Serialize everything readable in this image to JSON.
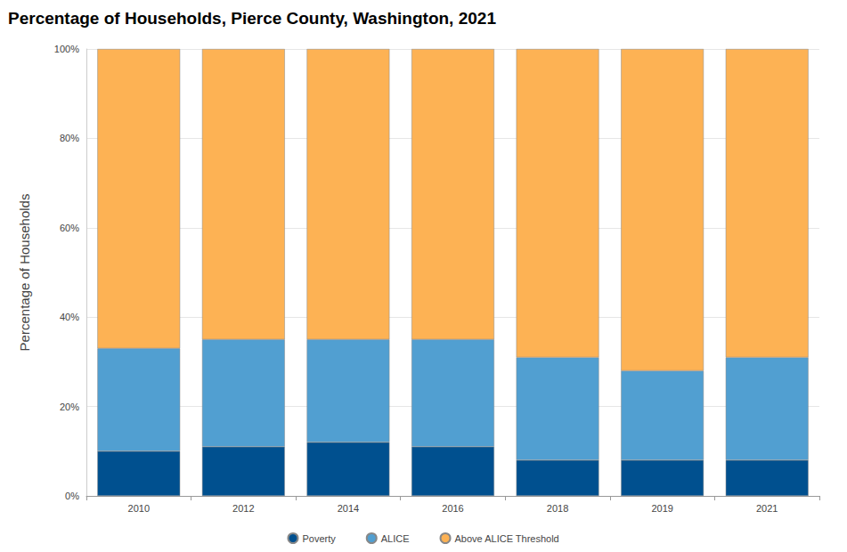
{
  "chart_data": {
    "type": "bar",
    "title": "Percentage of Households, Pierce County, Washington, 2021",
    "y_label": "Percentage of Households",
    "categories": [
      "2010",
      "2012",
      "2014",
      "2016",
      "2018",
      "2019",
      "2021"
    ],
    "series": [
      {
        "name": "Poverty",
        "color": "#00508f",
        "values": [
          10,
          11,
          12,
          11,
          8,
          8,
          8
        ]
      },
      {
        "name": "ALICE",
        "color": "#519fd1",
        "values": [
          23,
          24,
          23,
          24,
          23,
          20,
          23
        ]
      },
      {
        "name": "Above ALICE Threshold",
        "color": "#fdb254",
        "values": [
          67,
          65,
          65,
          65,
          69,
          72,
          69
        ]
      }
    ],
    "ylim": [
      0,
      100
    ],
    "yticks": [
      {
        "value": 0,
        "label": "0%"
      },
      {
        "value": 20,
        "label": "20%"
      },
      {
        "value": 40,
        "label": "40%"
      },
      {
        "value": 60,
        "label": "60%"
      },
      {
        "value": 80,
        "label": "80%"
      },
      {
        "value": 100,
        "label": "100%"
      }
    ],
    "stacked": true,
    "grid": true,
    "legend": "bottom"
  }
}
